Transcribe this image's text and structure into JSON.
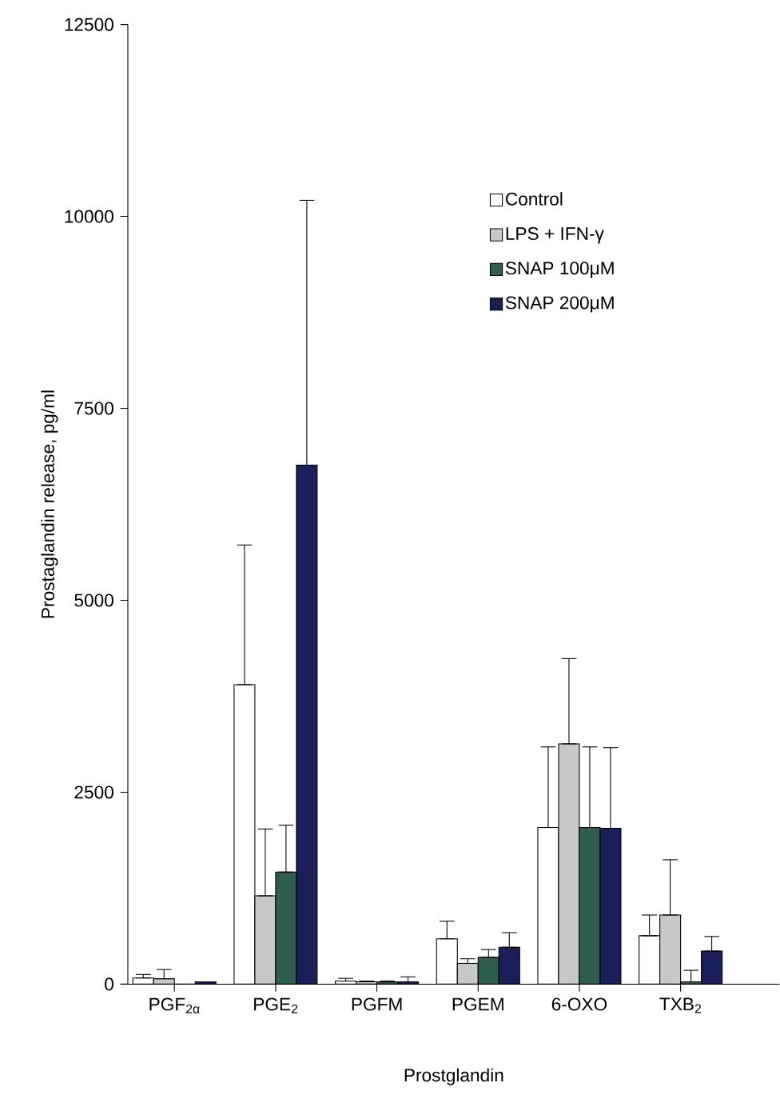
{
  "chart_data": {
    "type": "bar",
    "xlabel": "Prostglandin",
    "ylabel": "Prostaglandin release, pg/ml",
    "categories": [
      "PGF$_{2α}$",
      "PGE$_{2}$",
      "PGFM",
      "PGEM",
      "6-OXO",
      "TXB$_{2}$"
    ],
    "series": [
      {
        "name": "Control",
        "color": "#ffffff",
        "values": [
          80,
          3900,
          40,
          590,
          2040,
          630
        ],
        "errors": [
          [
            80,
            125
          ],
          [
            3900,
            5720
          ],
          [
            40,
            75
          ],
          [
            590,
            820
          ],
          [
            2040,
            3090
          ],
          [
            630,
            900
          ]
        ]
      },
      {
        "name": "LPS + IFN-γ",
        "color": "#c8c8c8",
        "values": [
          70,
          1150,
          30,
          270,
          3130,
          900
        ],
        "errors": [
          [
            70,
            190
          ],
          [
            1150,
            2020
          ],
          [
            30,
            40
          ],
          [
            270,
            330
          ],
          [
            3130,
            4240
          ],
          [
            900,
            1620
          ]
        ]
      },
      {
        "name": "SNAP 100μM",
        "color": "#2e5e50",
        "values": [
          0,
          1460,
          30,
          350,
          2040,
          30
        ],
        "errors": [
          null,
          [
            1460,
            2070
          ],
          [
            30,
            40
          ],
          [
            350,
            450
          ],
          [
            2040,
            3090
          ],
          [
            30,
            180
          ]
        ]
      },
      {
        "name": "SNAP 200μM",
        "color": "#1a1f5a",
        "values": [
          30,
          6760,
          30,
          480,
          2030,
          430
        ],
        "errors": [
          null,
          [
            6760,
            10210
          ],
          [
            30,
            95
          ],
          [
            480,
            670
          ],
          [
            2030,
            3080
          ],
          [
            430,
            620
          ]
        ]
      }
    ],
    "ylim": [
      0,
      12500
    ],
    "yticks": [
      0,
      2500,
      5000,
      7500,
      10000,
      12500
    ],
    "legend": "top right"
  }
}
